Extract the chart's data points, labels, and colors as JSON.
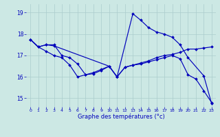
{
  "title": "Graphe des températures (°c)",
  "background_color": "#cce8e4",
  "grid_color": "#aacccc",
  "line_color": "#0000bb",
  "xlim": [
    -0.5,
    23.5
  ],
  "ylim": [
    14.6,
    19.4
  ],
  "yticks": [
    15,
    16,
    17,
    18,
    19
  ],
  "xticks": [
    0,
    1,
    2,
    3,
    4,
    5,
    6,
    7,
    8,
    9,
    10,
    11,
    12,
    13,
    14,
    15,
    16,
    17,
    18,
    19,
    20,
    21,
    22,
    23
  ],
  "series1_x": [
    0,
    1,
    2,
    3,
    4,
    5,
    6,
    7,
    8,
    9,
    10,
    11,
    12,
    13,
    14,
    15,
    16,
    17,
    18,
    19,
    20,
    21,
    22,
    23
  ],
  "series1_y": [
    17.75,
    17.4,
    17.5,
    17.5,
    17.0,
    16.9,
    16.6,
    16.1,
    16.2,
    16.35,
    16.5,
    16.0,
    16.45,
    16.55,
    16.65,
    16.75,
    16.9,
    17.0,
    17.05,
    17.15,
    17.3,
    17.3,
    17.35,
    17.4
  ],
  "series2_x": [
    0,
    1,
    2,
    3,
    4,
    5,
    6,
    7,
    8,
    9,
    10,
    11,
    12,
    13,
    14,
    15,
    16,
    17,
    18,
    19,
    20,
    21,
    22,
    23
  ],
  "series2_y": [
    17.75,
    17.4,
    17.2,
    17.0,
    16.9,
    16.55,
    16.0,
    16.1,
    16.15,
    16.3,
    16.5,
    16.0,
    16.45,
    16.55,
    16.6,
    16.7,
    16.8,
    16.9,
    17.0,
    16.85,
    16.1,
    15.9,
    15.35,
    14.8
  ],
  "series3_x": [
    0,
    1,
    2,
    3,
    10,
    11,
    13,
    14,
    15,
    16,
    17,
    18,
    19,
    20,
    22,
    23
  ],
  "series3_y": [
    17.75,
    17.4,
    17.5,
    17.45,
    16.5,
    16.0,
    18.95,
    18.65,
    18.3,
    18.1,
    18.0,
    17.85,
    17.5,
    16.9,
    16.05,
    14.75
  ]
}
